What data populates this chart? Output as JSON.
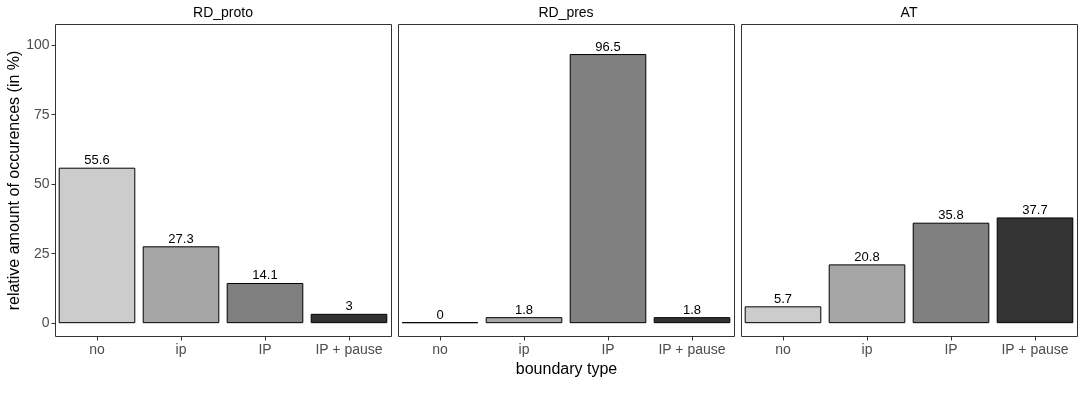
{
  "chart_data": [
    {
      "type": "bar",
      "title": "RD_proto",
      "ylabel": "relative amount of occurences (in %)",
      "categories": [
        "no",
        "ip",
        "IP",
        "IP + pause"
      ],
      "values": [
        55.6,
        27.3,
        14.1,
        3
      ],
      "colors": [
        "#cccccc",
        "#a6a6a6",
        "#808080",
        "#333333"
      ],
      "ylim": [
        -4.8,
        107.5
      ],
      "yticks": [
        0,
        25,
        50,
        75,
        100
      ],
      "data_labels": true,
      "grid": false,
      "legend": false
    },
    {
      "type": "bar",
      "title": "RD_pres",
      "xlabel": "boundary type",
      "categories": [
        "no",
        "ip",
        "IP",
        "IP + pause"
      ],
      "values": [
        0,
        1.8,
        96.5,
        1.8
      ],
      "colors": [
        "#000000",
        "#a6a6a6",
        "#808080",
        "#333333"
      ],
      "ylim": [
        -4.8,
        107.5
      ],
      "yticks": [
        0,
        25,
        50,
        75,
        100
      ],
      "tick_labels": "x",
      "data_labels": true,
      "grid": false,
      "legend": false
    },
    {
      "type": "bar",
      "title": "AT",
      "categories": [
        "no",
        "ip",
        "IP",
        "IP + pause"
      ],
      "values": [
        5.7,
        20.8,
        35.8,
        37.7
      ],
      "colors": [
        "#cccccc",
        "#a6a6a6",
        "#808080",
        "#333333"
      ],
      "ylim": [
        -4.8,
        107.5
      ],
      "yticks": [
        0,
        25,
        50,
        75,
        100
      ],
      "tick_labels": "x",
      "data_labels": true,
      "grid": false,
      "legend": false
    }
  ]
}
